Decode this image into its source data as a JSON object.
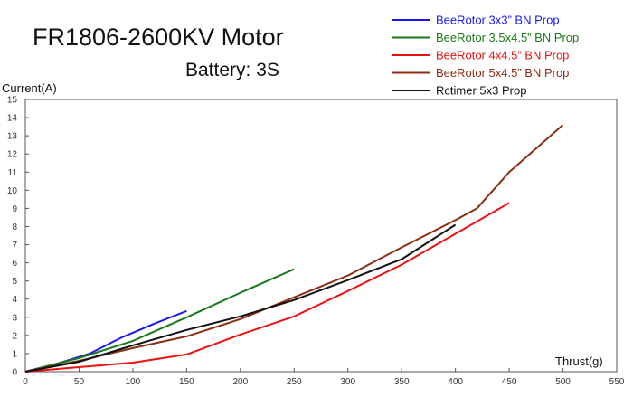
{
  "chart_data": {
    "type": "line",
    "title": "FR1806-2600KV Motor",
    "subtitle": "Battery: 3S",
    "xlabel": "Thrust(g)",
    "ylabel": "Current(A)",
    "xlim": [
      0,
      550
    ],
    "ylim": [
      0,
      15
    ],
    "xticks": [
      "0",
      "50",
      "100",
      "150",
      "200",
      "250",
      "300",
      "350",
      "400",
      "450",
      "500",
      "550"
    ],
    "yticks": [
      "0",
      "1",
      "2",
      "3",
      "4",
      "5",
      "6",
      "7",
      "8",
      "9",
      "10",
      "11",
      "12",
      "13",
      "14",
      "15"
    ],
    "grid": false,
    "legend_position": "top-right",
    "series": [
      {
        "name": "BeeRotor 3x3” BN Prop",
        "color": "#1a1aee",
        "x": [
          0,
          30,
          60,
          90,
          120,
          150
        ],
        "y": [
          0,
          0.45,
          1.0,
          1.9,
          2.65,
          3.35
        ]
      },
      {
        "name": "BeeRotor 3.5x4.5” BN Prop",
        "color": "#1a7a1a",
        "x": [
          0,
          50,
          100,
          150,
          200,
          250
        ],
        "y": [
          0,
          0.75,
          1.7,
          3.0,
          4.35,
          5.65
        ]
      },
      {
        "name": "BeeRotor 4x4.5” BN Prop",
        "color": "#ee1111",
        "x": [
          0,
          50,
          100,
          150,
          200,
          250,
          300,
          350,
          400,
          450
        ],
        "y": [
          0,
          0.25,
          0.5,
          0.95,
          2.05,
          3.05,
          4.45,
          5.9,
          7.6,
          9.3
        ]
      },
      {
        "name": "BeeRotor 5x4.5” BN Prop",
        "color": "#8b2e12",
        "x": [
          0,
          50,
          100,
          150,
          200,
          250,
          300,
          350,
          400,
          420,
          450,
          500
        ],
        "y": [
          0,
          0.6,
          1.3,
          1.95,
          2.9,
          4.1,
          5.3,
          6.85,
          8.35,
          9.0,
          11.0,
          13.6
        ]
      },
      {
        "name": "Rctimer 5x3 Prop",
        "color": "#111111",
        "x": [
          0,
          50,
          100,
          150,
          200,
          250,
          300,
          350,
          400
        ],
        "y": [
          0,
          0.55,
          1.45,
          2.3,
          3.05,
          3.95,
          5.05,
          6.2,
          8.1
        ]
      }
    ]
  }
}
